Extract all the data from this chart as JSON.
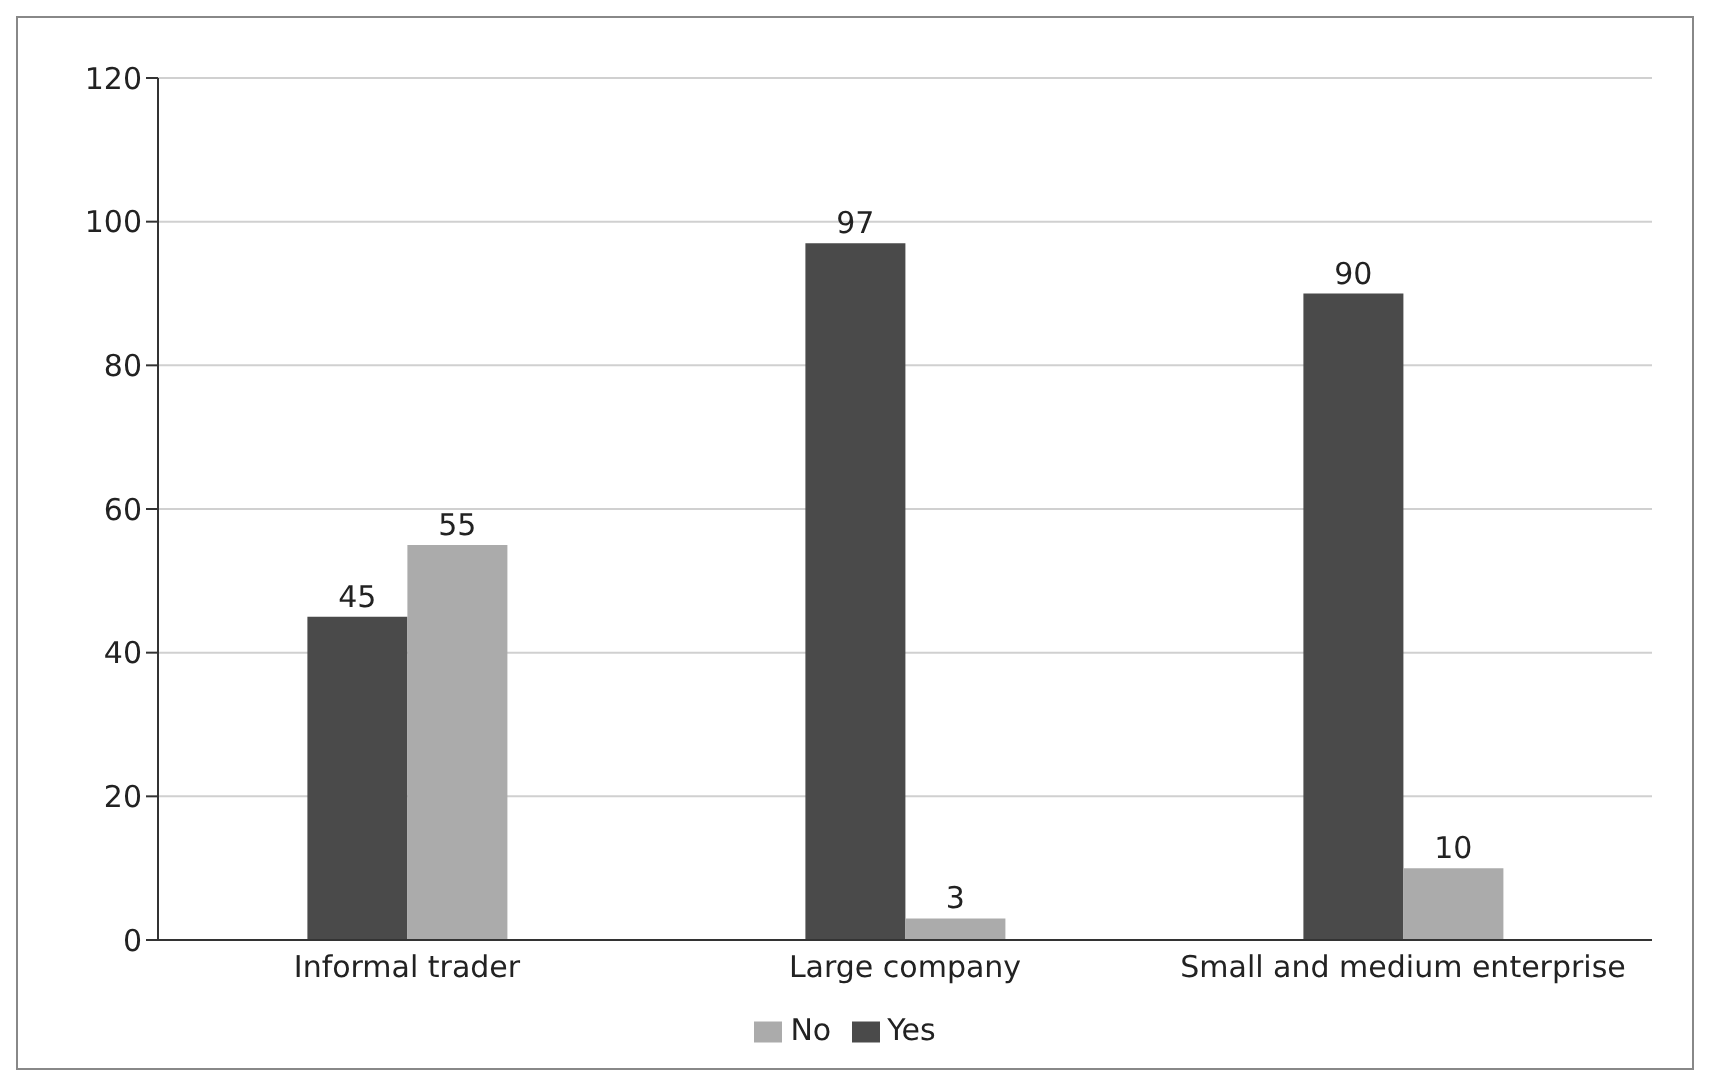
{
  "chart_data": {
    "type": "bar",
    "categories": [
      "Informal trader",
      "Large company",
      "Small and medium enterprise"
    ],
    "series": [
      {
        "name": "Yes",
        "color": "#4a4a4a",
        "values": [
          45,
          97,
          90
        ]
      },
      {
        "name": "No",
        "color": "#ababab",
        "values": [
          55,
          3,
          10
        ]
      }
    ],
    "ylim": [
      0,
      120
    ],
    "yticks": [
      0,
      20,
      40,
      60,
      80,
      100,
      120
    ],
    "grid": "y",
    "legend": "bottom",
    "data_labels": true
  }
}
